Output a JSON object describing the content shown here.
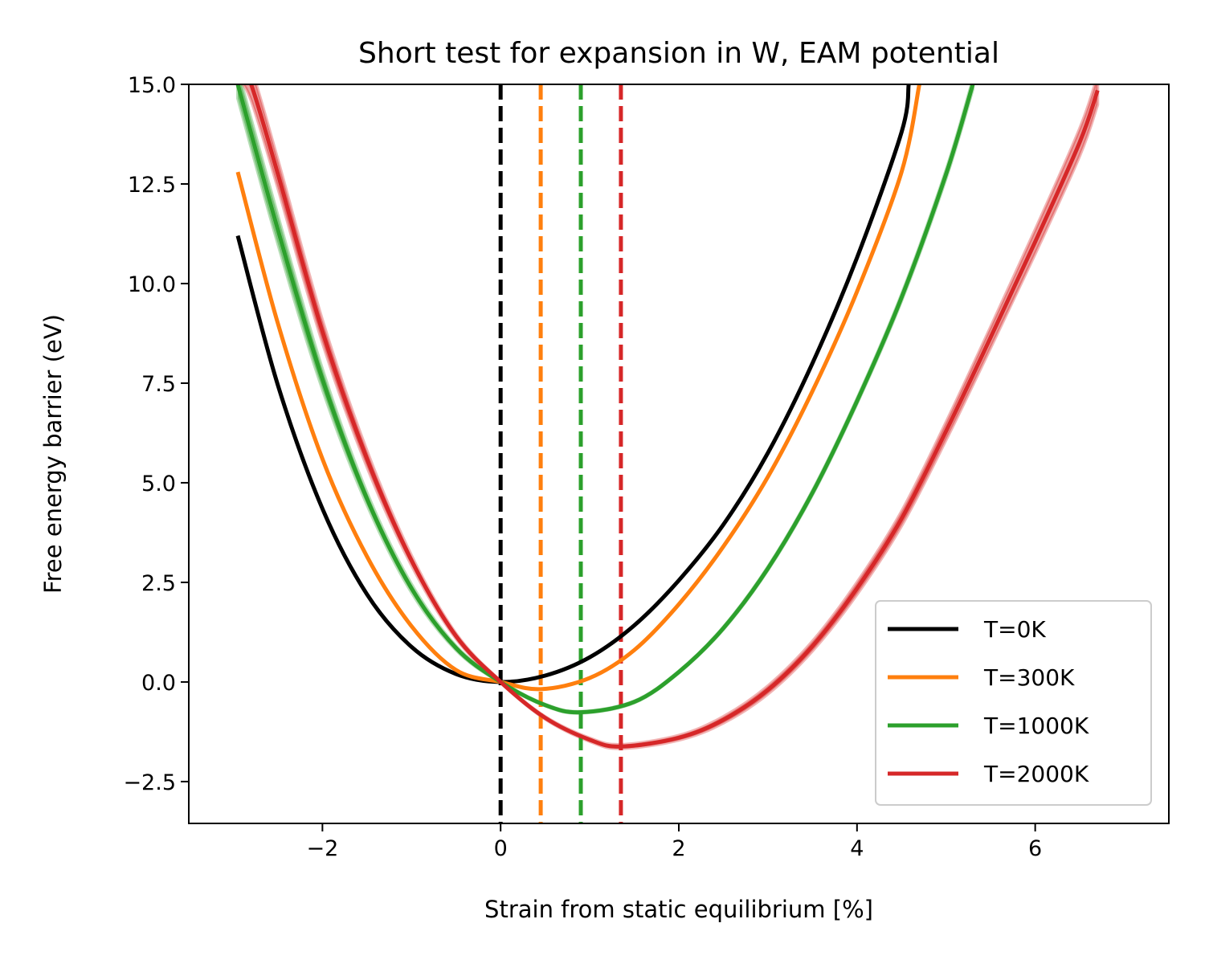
{
  "chart_data": {
    "type": "line",
    "title": "Short test for expansion in W, EAM potential",
    "xlabel": "Strain from static equilibrium [%]",
    "ylabel": "Free energy barrier (eV)",
    "xlim": [
      -3.5,
      7.5
    ],
    "ylim": [
      -3.55,
      15.0
    ],
    "xticks": [
      -2,
      0,
      2,
      4,
      6
    ],
    "xtick_labels": [
      "−2",
      "0",
      "2",
      "4",
      "6"
    ],
    "yticks": [
      -2.5,
      0.0,
      2.5,
      5.0,
      7.5,
      10.0,
      12.5,
      15.0
    ],
    "ytick_labels": [
      "−2.5",
      "0.0",
      "2.5",
      "5.0",
      "7.5",
      "10.0",
      "12.5",
      "15.0"
    ],
    "grid": false,
    "legend_position": "lower-right",
    "series": [
      {
        "name": "T=0K",
        "color": "#000000",
        "equilibrium_strain": 0.0,
        "x": [
          -2.95,
          -2.5,
          -2.0,
          -1.5,
          -1.0,
          -0.5,
          0.0,
          0.5,
          1.0,
          1.5,
          2.0,
          2.5,
          3.0,
          3.5,
          4.0,
          4.5,
          4.58
        ],
        "y": [
          11.2,
          7.45,
          4.35,
          2.2,
          0.88,
          0.2,
          0.0,
          0.16,
          0.62,
          1.42,
          2.55,
          3.95,
          5.75,
          8.0,
          10.65,
          13.8,
          15.0
        ],
        "band": []
      },
      {
        "name": "T=300K",
        "color": "#ff7f0e",
        "equilibrium_strain": 0.45,
        "x": [
          -2.95,
          -2.5,
          -2.0,
          -1.5,
          -1.0,
          -0.5,
          0.0,
          0.45,
          1.0,
          1.5,
          2.0,
          2.5,
          3.0,
          3.5,
          4.0,
          4.5,
          4.7
        ],
        "y": [
          12.8,
          9.0,
          5.6,
          3.15,
          1.4,
          0.3,
          0.0,
          -0.18,
          0.1,
          0.8,
          1.95,
          3.4,
          5.15,
          7.3,
          9.8,
          12.8,
          15.0
        ],
        "band": []
      },
      {
        "name": "T=1000K",
        "color": "#2ca02c",
        "equilibrium_strain": 0.9,
        "x": [
          -2.95,
          -2.5,
          -2.0,
          -1.5,
          -1.0,
          -0.5,
          0.0,
          0.5,
          0.9,
          1.5,
          2.0,
          2.5,
          3.0,
          3.5,
          4.0,
          4.5,
          5.0,
          5.3
        ],
        "y": [
          15.0,
          11.35,
          7.6,
          4.6,
          2.35,
          0.85,
          0.0,
          -0.58,
          -0.76,
          -0.5,
          0.25,
          1.35,
          2.85,
          4.75,
          7.05,
          9.65,
          12.75,
          15.0
        ],
        "band": [
          0.35,
          0.35,
          0.25,
          0.15,
          0.1,
          0.05,
          0.02,
          0.02,
          0.02,
          0.02,
          0.02,
          0.03,
          0.04,
          0.05,
          0.06,
          0.08,
          0.1,
          0.12
        ]
      },
      {
        "name": "T=2000K",
        "color": "#d62728",
        "equilibrium_strain": 1.35,
        "x": [
          -2.95,
          -2.8,
          -2.5,
          -2.0,
          -1.5,
          -1.0,
          -0.5,
          0.0,
          0.5,
          1.0,
          1.35,
          2.0,
          2.5,
          3.0,
          3.5,
          4.0,
          4.5,
          5.0,
          5.5,
          6.0,
          6.5,
          6.7
        ],
        "y": [
          15.6,
          15.0,
          12.75,
          8.8,
          5.6,
          3.05,
          1.15,
          0.0,
          -0.9,
          -1.45,
          -1.62,
          -1.4,
          -0.95,
          -0.2,
          0.9,
          2.35,
          4.1,
          6.3,
          8.65,
          11.05,
          13.55,
          14.85
        ],
        "band": [
          0.45,
          0.4,
          0.35,
          0.28,
          0.2,
          0.12,
          0.06,
          0.02,
          0.03,
          0.04,
          0.05,
          0.06,
          0.08,
          0.1,
          0.12,
          0.15,
          0.18,
          0.22,
          0.26,
          0.3,
          0.34,
          0.36
        ]
      }
    ]
  }
}
